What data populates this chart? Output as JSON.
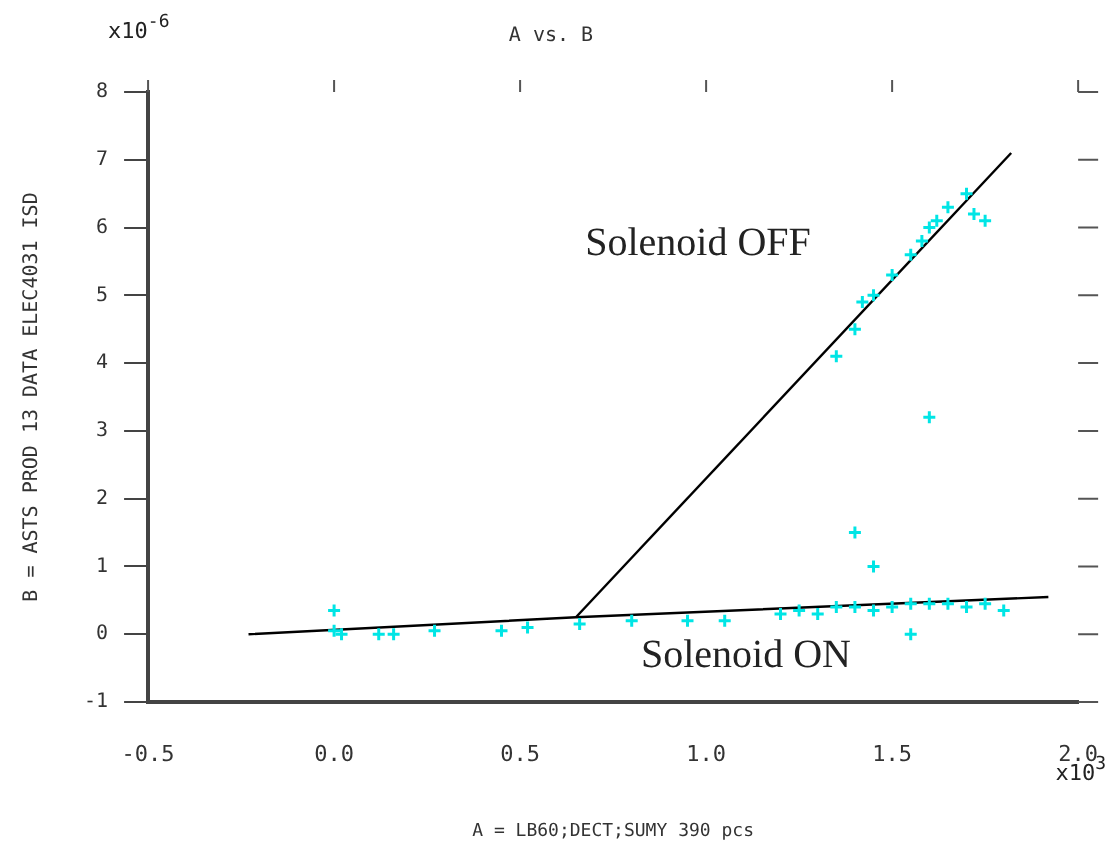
{
  "chart_data": {
    "type": "scatter",
    "title": "A vs. B",
    "xlabel": "A = LB60;DECT;SUMY 390 pcs",
    "ylabel": "B = ASTS PROD 13 DATA ELEC4031 ISD",
    "xlim": [
      -0.5,
      2.0
    ],
    "xticks": [
      {
        "value": -0.5,
        "label": "-0.5"
      },
      {
        "value": 0,
        "label": "0.0"
      },
      {
        "value": 0.5,
        "label": "0.5"
      },
      {
        "value": 1,
        "label": "1.0"
      },
      {
        "value": 1.5,
        "label": "1.5"
      },
      {
        "value": 2,
        "label": "2.0"
      }
    ],
    "ylim": [
      -1,
      8
    ],
    "yticks": [
      -1,
      0,
      1,
      2,
      3,
      4,
      5,
      6,
      7,
      8
    ],
    "grid": false,
    "legend": false,
    "series": [
      {
        "marker": "cross",
        "color": "#00e5e5",
        "x": [
          0.0,
          0.0,
          0.02,
          0.12,
          0.16,
          0.27,
          0.45,
          0.52,
          0.66,
          0.8,
          0.95,
          1.05,
          1.2,
          1.25,
          1.3,
          1.35,
          1.4,
          1.45,
          1.5,
          1.55,
          1.6,
          1.65,
          1.7,
          1.75,
          1.8,
          1.55,
          1.35,
          1.4,
          1.42,
          1.45,
          1.5,
          1.55,
          1.58,
          1.6,
          1.62,
          1.65,
          1.7,
          1.72,
          1.75,
          1.6,
          1.4,
          1.45
        ],
        "values": [
          0.05,
          0.35,
          0.0,
          0.0,
          0.0,
          0.05,
          0.05,
          0.1,
          0.15,
          0.2,
          0.2,
          0.2,
          0.3,
          0.35,
          0.3,
          0.4,
          0.4,
          0.35,
          0.4,
          0.45,
          0.45,
          0.45,
          0.4,
          0.45,
          0.35,
          0.0,
          4.1,
          4.5,
          4.9,
          5.0,
          5.3,
          5.6,
          5.8,
          6.0,
          6.1,
          6.3,
          6.5,
          6.2,
          6.1,
          3.2,
          1.5,
          1.0
        ]
      },
      {
        "type": "line",
        "marker": "none",
        "color": "#000000",
        "x": [
          -0.23,
          0.65,
          1.92
        ],
        "values": [
          0.0,
          0.25,
          0.55
        ]
      },
      {
        "type": "line",
        "marker": "none",
        "color": "#000000",
        "x": [
          0.65,
          1.82
        ],
        "values": [
          0.25,
          7.1
        ]
      }
    ],
    "annotations": [
      "Solenoid OFF",
      "Solenoid ON",
      "x10$^{-6}$",
      "x10$^{3}$"
    ]
  }
}
